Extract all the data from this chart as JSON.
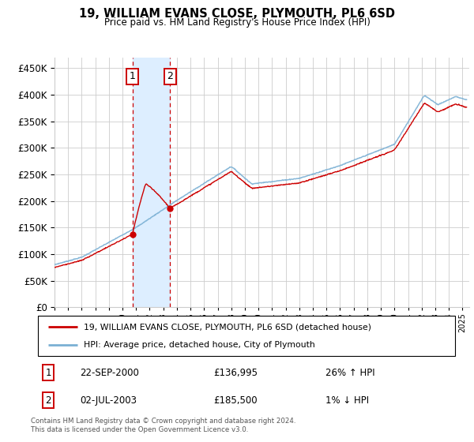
{
  "title": "19, WILLIAM EVANS CLOSE, PLYMOUTH, PL6 6SD",
  "subtitle": "Price paid vs. HM Land Registry's House Price Index (HPI)",
  "hpi_label": "HPI: Average price, detached house, City of Plymouth",
  "sale_label": "19, WILLIAM EVANS CLOSE, PLYMOUTH, PL6 6SD (detached house)",
  "footer": "Contains HM Land Registry data © Crown copyright and database right 2024.\nThis data is licensed under the Open Government Licence v3.0.",
  "sale1_date": "22-SEP-2000",
  "sale1_price": 136995,
  "sale1_hpi_text": "26% ↑ HPI",
  "sale2_date": "02-JUL-2003",
  "sale2_price": 185500,
  "sale2_hpi_text": "1% ↓ HPI",
  "sale1_x": 2000.73,
  "sale2_x": 2003.5,
  "xlim_left": 1995.0,
  "xlim_right": 2025.5,
  "ylim_bottom": 0,
  "ylim_top": 470000,
  "yticks": [
    0,
    50000,
    100000,
    150000,
    200000,
    250000,
    300000,
    350000,
    400000,
    450000
  ],
  "sale_color": "#cc0000",
  "hpi_color": "#7ab0d4",
  "shade_color": "#ddeeff",
  "grid_color": "#cccccc",
  "ann_box_color": "#cc0000",
  "bg_color": "#ffffff"
}
